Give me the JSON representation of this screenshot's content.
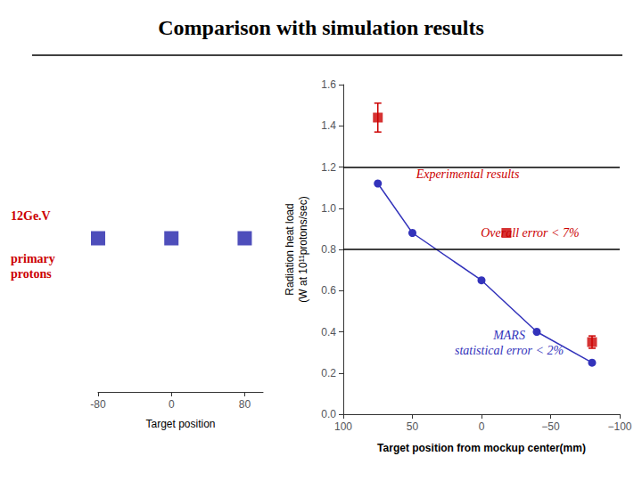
{
  "chart_data": [
    {
      "type": "scatter",
      "x": [
        80,
        0,
        -80
      ],
      "values": [
        0,
        0,
        0
      ],
      "color": "#2222aa",
      "marker": "square",
      "xlabel": "Target position",
      "xlim": [
        -80,
        100
      ],
      "xticks": [
        80,
        0,
        -80
      ],
      "ylim": [
        -1.15,
        1.05
      ],
      "tick_labels": "x",
      "grid": false,
      "annotations": [
        {
          "text": "12Ge.V",
          "color": "#cc0000"
        },
        {
          "text": "primary\nprotons",
          "color": "#cc0000"
        }
      ]
    },
    {
      "type": "line",
      "title": "Comparison with simulation results",
      "xlabel": "Target position from mockup center(mm)",
      "ylabel": "Radiation heat load\n(W at 10¹¹protons/sec)",
      "xlim": [
        100,
        -100
      ],
      "xticks": [
        100,
        50,
        0,
        {
          "value": -50,
          "label": "−50"
        },
        {
          "value": -100,
          "label": "−100"
        }
      ],
      "ylim": [
        0,
        1.6
      ],
      "yticks": [
        {
          "value": 0,
          "label": "0.0"
        },
        0.2,
        0.4,
        0.6,
        0.8,
        {
          "value": 1.0,
          "label": "1.0"
        },
        1.2,
        1.4,
        1.6
      ],
      "grid": false,
      "hlines": [
        1.2,
        0.8
      ],
      "series": [
        {
          "type": "line",
          "color": "#3333bb",
          "marker": "circle",
          "x": [
            75,
            50,
            0,
            -40,
            -80
          ],
          "values": [
            1.12,
            0.88,
            0.65,
            0.4,
            0.25
          ]
        },
        {
          "type": "scatter",
          "color": "#cc0000",
          "marker": "square",
          "x": [
            75,
            -80
          ],
          "values": [
            1.44,
            0.35
          ],
          "errors": [
            0.07,
            0.03
          ]
        },
        {
          "type": "scatter",
          "color": "#cc0000",
          "marker": "square",
          "x": [
            -18
          ],
          "values": [
            0.88
          ]
        }
      ],
      "annotations": [
        {
          "text": "Experimental results",
          "x": 10,
          "y": 1.13,
          "color": "#cc0000"
        },
        {
          "text": "  Overall error < 7%",
          "x": 5,
          "y": 0.88,
          "color": "#cc0000"
        },
        {
          "text": "MARS\nstatistical error < 2%",
          "x": -20,
          "y": 0.42,
          "color": "#3333bb"
        }
      ]
    }
  ]
}
